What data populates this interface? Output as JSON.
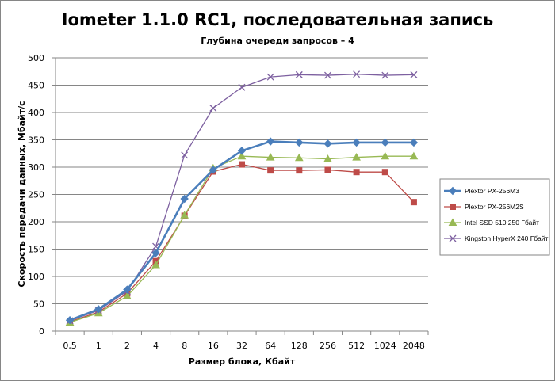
{
  "chart_data": {
    "type": "line",
    "title": "Iometer 1.1.0 RC1, последовательная запись",
    "subtitle": "Глубина очереди запросов – 4",
    "xlabel": "Размер блока, Кбайт",
    "ylabel": "Скорость передачи данных, Мбайт/с",
    "categories": [
      "0,5",
      "1",
      "2",
      "4",
      "8",
      "16",
      "32",
      "64",
      "128",
      "256",
      "512",
      "1024",
      "2048"
    ],
    "ylim": [
      0,
      500
    ],
    "yticks": [
      0,
      50,
      100,
      150,
      200,
      250,
      300,
      350,
      400,
      450,
      500
    ],
    "grid": true,
    "legend_position": "right",
    "series": [
      {
        "name": "Plextor PX-256M3",
        "color": "#4a7ebb",
        "marker": "diamond",
        "values": [
          20,
          40,
          76,
          143,
          242,
          295,
          330,
          347,
          345,
          343,
          345,
          345,
          345
        ]
      },
      {
        "name": "Plextor PX-256M2S",
        "color": "#be4b48",
        "marker": "square",
        "values": [
          17,
          35,
          69,
          128,
          211,
          292,
          305,
          294,
          294,
          295,
          291,
          291,
          236
        ]
      },
      {
        "name": "Intel SSD 510 250 Гбайт",
        "color": "#98b954",
        "marker": "triangle",
        "values": [
          16,
          33,
          64,
          121,
          212,
          298,
          320,
          318,
          317,
          315,
          318,
          320,
          320
        ]
      },
      {
        "name": "Kingston HyperX 240 Гбайт",
        "color": "#7d60a0",
        "marker": "cross",
        "values": [
          19,
          38,
          73,
          155,
          322,
          408,
          446,
          465,
          469,
          468,
          470,
          468,
          469
        ]
      }
    ]
  }
}
